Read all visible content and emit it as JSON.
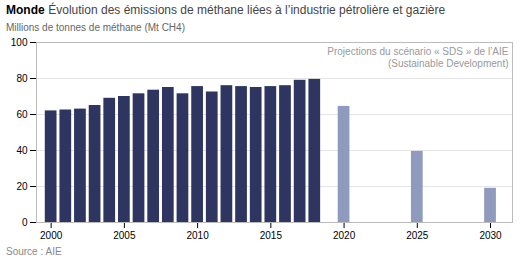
{
  "chart_data": {
    "type": "bar",
    "title": "Monde",
    "subtitle": "Évolution des émissions de méthane liées à l’industrie pétrolière et gazière",
    "ylabel": "Millions de tonnes de méthane (Mt CH4)",
    "source": "Source : AIE",
    "annotation": "Projections du scénario « SDS » de l’AIE\n(Sustainable Development)",
    "x": [
      2000,
      2001,
      2002,
      2003,
      2004,
      2005,
      2006,
      2007,
      2008,
      2009,
      2010,
      2011,
      2012,
      2013,
      2014,
      2015,
      2016,
      2017,
      2018,
      2020,
      2025,
      2030
    ],
    "values": [
      62,
      62.5,
      63,
      65,
      69,
      70,
      71.5,
      73.5,
      75,
      71.5,
      75.5,
      72.5,
      76,
      75.5,
      75,
      75.5,
      76,
      79,
      79.5,
      64.5,
      39.5,
      19
    ],
    "colors": [
      "#2d3560",
      "#2d3560",
      "#2d3560",
      "#2d3560",
      "#2d3560",
      "#2d3560",
      "#2d3560",
      "#2d3560",
      "#2d3560",
      "#2d3560",
      "#2d3560",
      "#2d3560",
      "#2d3560",
      "#2d3560",
      "#2d3560",
      "#2d3560",
      "#2d3560",
      "#2d3560",
      "#2d3560",
      "#8e9bbf",
      "#8e9bbf",
      "#8e9bbf"
    ],
    "xlim": [
      1999.0,
      2031.5
    ],
    "xticks": [
      2000,
      2005,
      2010,
      2015,
      2020,
      2025,
      2030
    ],
    "ylim": [
      0,
      100
    ],
    "yticks": [
      0,
      20,
      40,
      60,
      80,
      100
    ],
    "grid": true
  }
}
